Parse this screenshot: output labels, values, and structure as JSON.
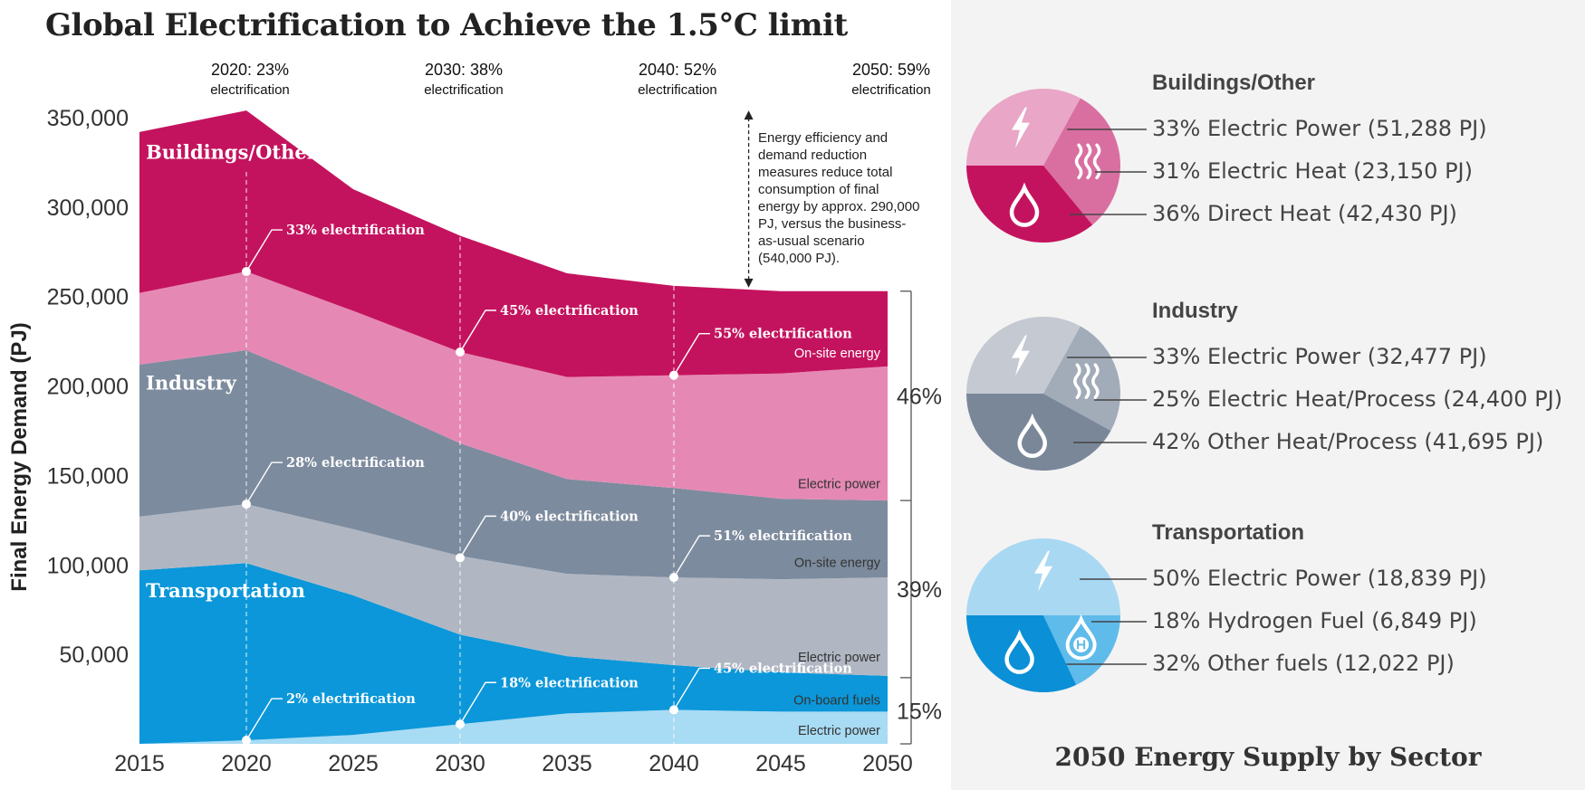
{
  "title": "Global Electrification to Achieve the 1.5°C limit",
  "supply_title": "2050 Energy Supply by Sector",
  "annotation": "Energy efficiency and demand reduction measures reduce total consumption of final energy by approx. 290,000 PJ, versus the business-as-usual scenario (540,000 PJ).",
  "colors": {
    "buildings_onsite": "#c4135e",
    "buildings_electric": "#e589b4",
    "industry_onsite": "#7d8b9e",
    "industry_electric": "#b0b7c3",
    "transport_onboard": "#0b97d9",
    "transport_electric": "#a8dbf4",
    "panel_bg": "#f3f3f3"
  },
  "chart_data": {
    "type": "area",
    "stacked": true,
    "x": [
      2015,
      2020,
      2025,
      2030,
      2035,
      2040,
      2045,
      2050
    ],
    "ylabel": "Final Energy Demand (PJ)",
    "ylim": [
      0,
      350000
    ],
    "yticks": [
      "350,000",
      "300,000",
      "250,000",
      "200,000",
      "150,000",
      "100,000",
      "50,000"
    ],
    "xticks": [
      "2015",
      "2020",
      "2025",
      "2030",
      "2035",
      "2040",
      "2045",
      "2050"
    ],
    "series": [
      {
        "name": "Electric power",
        "key": "transport_electric",
        "values": [
          0,
          2000,
          5000,
          11000,
          17000,
          19000,
          18000,
          18000
        ]
      },
      {
        "name": "On-board fuels",
        "key": "transport_onboard",
        "values": [
          97000,
          99000,
          78000,
          50000,
          32000,
          25000,
          22000,
          20000
        ]
      },
      {
        "name": "Electric power",
        "key": "industry_electric",
        "values": [
          30000,
          33000,
          37000,
          44000,
          46000,
          49000,
          52000,
          55000
        ]
      },
      {
        "name": "On-site energy",
        "key": "industry_onsite",
        "values": [
          85000,
          86000,
          75000,
          63000,
          53000,
          50000,
          45000,
          43000
        ]
      },
      {
        "name": "Electric power",
        "key": "buildings_electric",
        "values": [
          40000,
          44000,
          47000,
          51000,
          57000,
          63000,
          70000,
          75000
        ]
      },
      {
        "name": "On-site energy",
        "key": "buildings_onsite",
        "values": [
          90000,
          90000,
          68000,
          65000,
          58000,
          50000,
          46000,
          42000
        ]
      }
    ],
    "sector_labels": [
      {
        "text": "Buildings/Other",
        "x": 2015,
        "y": 327000
      },
      {
        "text": "Industry",
        "x": 2015,
        "y": 198000
      },
      {
        "text": "Transportation",
        "x": 2015,
        "y": 82000
      }
    ],
    "layer_labels": [
      {
        "text": "On-site energy",
        "y": 216000
      },
      {
        "text": "Electric power",
        "y": 143000
      },
      {
        "text": "On-site energy",
        "y": 99000
      },
      {
        "text": "Electric power",
        "y": 46000
      },
      {
        "text": "On-board fuels",
        "y": 22000
      },
      {
        "text": "Electric power",
        "y": 5000
      }
    ],
    "electrification_points": [
      {
        "x": 2020,
        "y": 264000,
        "label": "33% electrification"
      },
      {
        "x": 2030,
        "y": 219000,
        "label": "45% electrification"
      },
      {
        "x": 2040,
        "y": 206000,
        "label": "55% electrification"
      },
      {
        "x": 2020,
        "y": 134000,
        "label": "28% electrification"
      },
      {
        "x": 2030,
        "y": 104000,
        "label": "40% electrification"
      },
      {
        "x": 2040,
        "y": 93000,
        "label": "51% electrification"
      },
      {
        "x": 2020,
        "y": 2000,
        "label": "2% electrification"
      },
      {
        "x": 2030,
        "y": 11000,
        "label": "18% electrification"
      },
      {
        "x": 2040,
        "y": 19000,
        "label": "45% electrification"
      }
    ],
    "top_labels": [
      {
        "x": 2020,
        "year": "2020: 23%",
        "sub": "electrification"
      },
      {
        "x": 2030,
        "year": "2030: 38%",
        "sub": "electrification"
      },
      {
        "x": 2040,
        "year": "2040: 52%",
        "sub": "electrification"
      },
      {
        "x": 2050,
        "year": "2050: 59%",
        "sub": "electrification"
      }
    ],
    "share_brackets": [
      {
        "label": "46%",
        "from": 136000,
        "to": 253000
      },
      {
        "label": "39%",
        "from": 37000,
        "to": 136000
      },
      {
        "label": "15%",
        "from": 0,
        "to": 37000
      }
    ],
    "annotation_arrow": {
      "x": 2043.5,
      "from": 255000,
      "to": 354000
    }
  },
  "sectors": [
    {
      "title": "Buildings/Other",
      "colors": [
        "#e9a6c6",
        "#d96fa0",
        "#c4135e"
      ],
      "icons": [
        "bolt-icon",
        "heat-icon",
        "drop-icon"
      ],
      "items": [
        {
          "text": "33% Electric Power (51,288 PJ)",
          "pct": 33
        },
        {
          "text": "31% Electric Heat (23,150 PJ)",
          "pct": 31
        },
        {
          "text": "36% Direct Heat (42,430 PJ)",
          "pct": 36
        }
      ]
    },
    {
      "title": "Industry",
      "colors": [
        "#c4c9d2",
        "#a2abb8",
        "#7a8799"
      ],
      "icons": [
        "bolt-icon",
        "heat-icon",
        "drop-icon"
      ],
      "items": [
        {
          "text": "33% Electric Power (32,477 PJ)",
          "pct": 33
        },
        {
          "text": "25% Electric Heat/Process (24,400 PJ)",
          "pct": 25
        },
        {
          "text": "42% Other Heat/Process (41,695 PJ)",
          "pct": 42
        }
      ]
    },
    {
      "title": "Transportation",
      "colors": [
        "#a9d8f3",
        "#5fbbea",
        "#0b8fd6"
      ],
      "icons": [
        "bolt-icon",
        "hydrogen-icon",
        "drop-icon"
      ],
      "items": [
        {
          "text": "50% Electric Power (18,839 PJ)",
          "pct": 50
        },
        {
          "text": "18% Hydrogen Fuel (6,849 PJ)",
          "pct": 18
        },
        {
          "text": "32% Other fuels (12,022 PJ)",
          "pct": 32
        }
      ]
    }
  ]
}
